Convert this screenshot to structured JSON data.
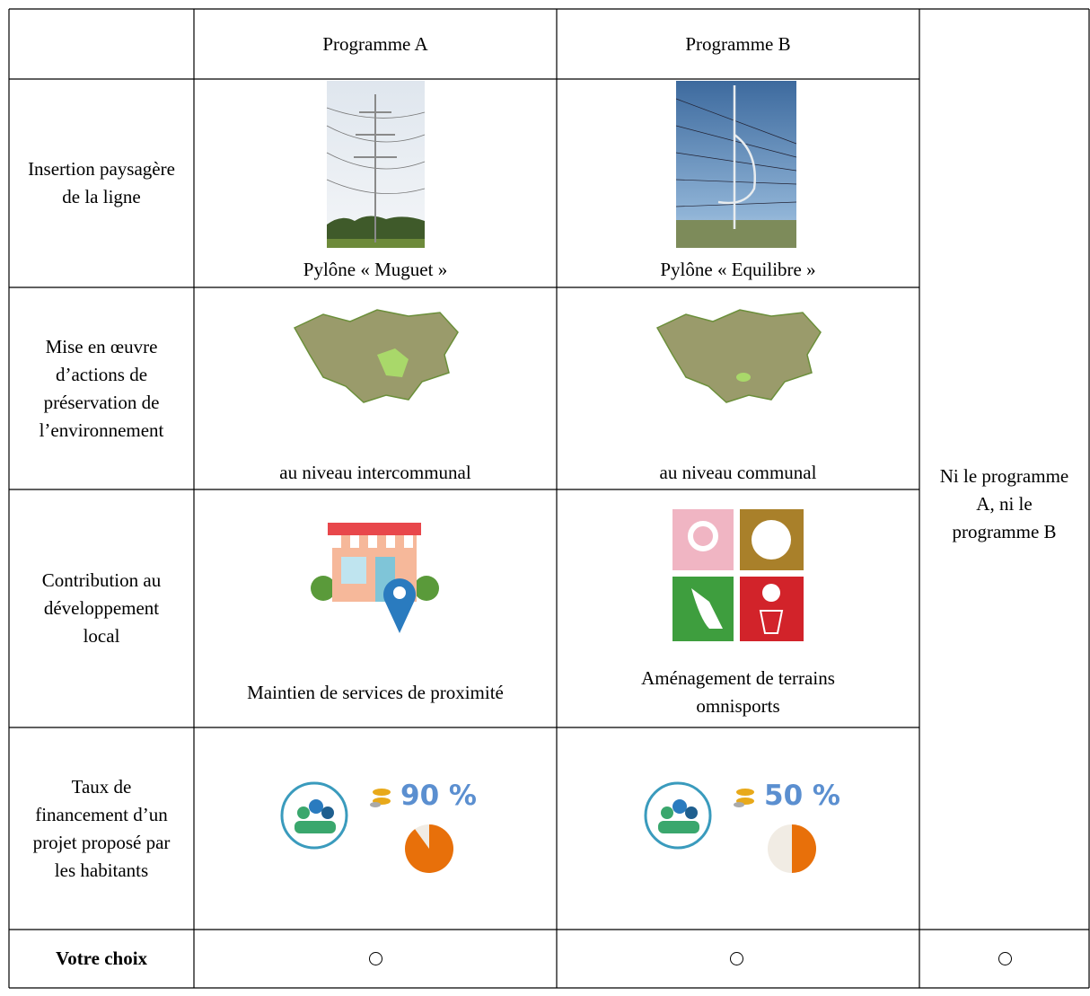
{
  "header": {
    "programme_a": "Programme A",
    "programme_b": "Programme B"
  },
  "rows": [
    {
      "label": "Insertion paysagère de la ligne",
      "a": "Pylône « Muguet »",
      "b": "Pylône « Equilibre »"
    },
    {
      "label": "Mise en œuvre d’actions de préservation de l’environnement",
      "a": "au niveau intercommunal",
      "b": "au niveau communal"
    },
    {
      "label": "Contribution au développement local",
      "a": "Maintien de services de proximité",
      "b": "Aménagement de terrains omnisports"
    },
    {
      "label": "Taux de financement d’un projet proposé par les habitants",
      "a": {
        "label": "90 %",
        "share": 90
      },
      "b": {
        "label": "50 %",
        "share": 50
      }
    }
  ],
  "none_option": "Ni le programme A, ni le programme B",
  "choice": {
    "label": "Votre choix"
  }
}
